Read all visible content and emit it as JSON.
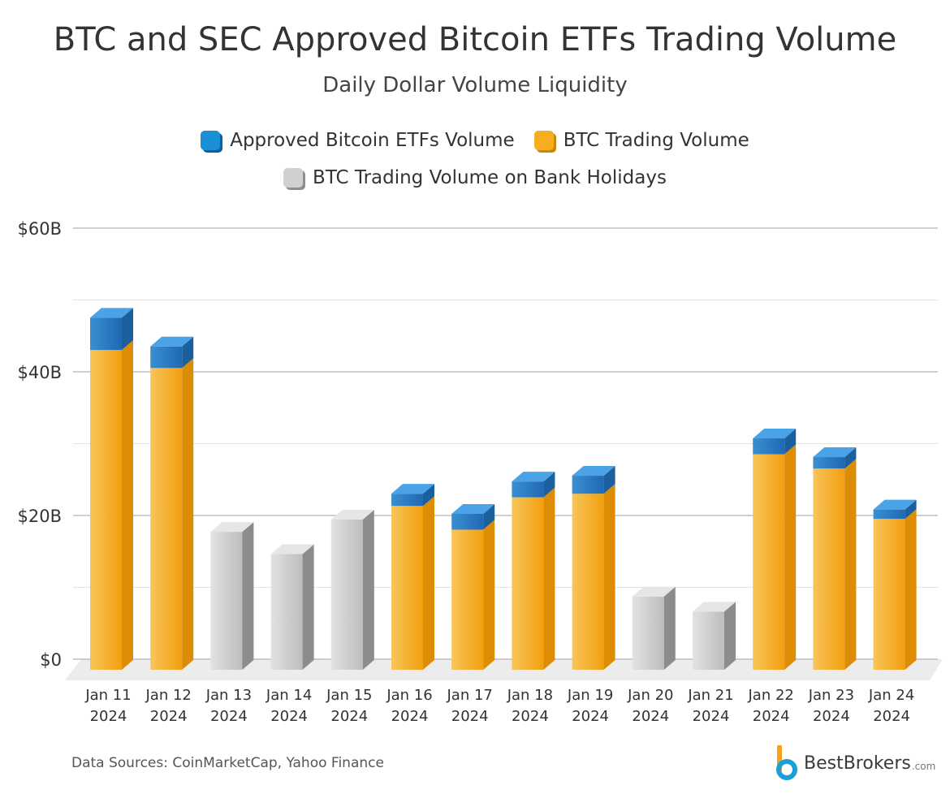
{
  "title": "BTC and SEC Approved Bitcoin ETFs Trading Volume",
  "subtitle": "Daily Dollar Volume Liquidity",
  "source": "Data Sources: CoinMarketCap, Yahoo Finance",
  "brand": {
    "name": "BestBrokers",
    "domain": ".com"
  },
  "chart_data": {
    "type": "bar",
    "stacked": true,
    "title": "BTC and SEC Approved Bitcoin ETFs Trading Volume",
    "subtitle": "Daily Dollar Volume Liquidity",
    "xlabel": "",
    "ylabel": "",
    "ylim": [
      0,
      60
    ],
    "yticks": [
      0,
      20,
      40,
      60
    ],
    "ytick_labels": [
      "$0",
      "$20B",
      "$40B",
      "$60B"
    ],
    "grid": true,
    "legend_position": "top-center",
    "categories": [
      [
        "Jan 11",
        "2024"
      ],
      [
        "Jan 12",
        "2024"
      ],
      [
        "Jan 13",
        "2024"
      ],
      [
        "Jan 14",
        "2024"
      ],
      [
        "Jan 15",
        "2024"
      ],
      [
        "Jan 16",
        "2024"
      ],
      [
        "Jan 17",
        "2024"
      ],
      [
        "Jan 18",
        "2024"
      ],
      [
        "Jan 19",
        "2024"
      ],
      [
        "Jan 20",
        "2024"
      ],
      [
        "Jan 21",
        "2024"
      ],
      [
        "Jan 22",
        "2024"
      ],
      [
        "Jan 23",
        "2024"
      ],
      [
        "Jan 24",
        "2024"
      ]
    ],
    "series": [
      {
        "name": "BTC Trading Volume",
        "color": "#f6ad1e",
        "values": [
          44.5,
          42.0,
          null,
          null,
          null,
          22.8,
          19.5,
          24.0,
          24.5,
          null,
          null,
          30.0,
          28.0,
          21.0
        ]
      },
      {
        "name": "Approved Bitcoin ETFs Volume",
        "color": "#1a8fd6",
        "values": [
          4.5,
          3.0,
          null,
          null,
          null,
          1.7,
          2.2,
          2.2,
          2.5,
          null,
          null,
          2.2,
          1.6,
          1.3
        ]
      },
      {
        "name": "BTC Trading Volume on Bank Holidays",
        "color": "#cfcfcf",
        "values": [
          null,
          null,
          19.2,
          16.1,
          20.9,
          null,
          null,
          null,
          null,
          10.2,
          8.1,
          null,
          null,
          null
        ]
      }
    ]
  }
}
